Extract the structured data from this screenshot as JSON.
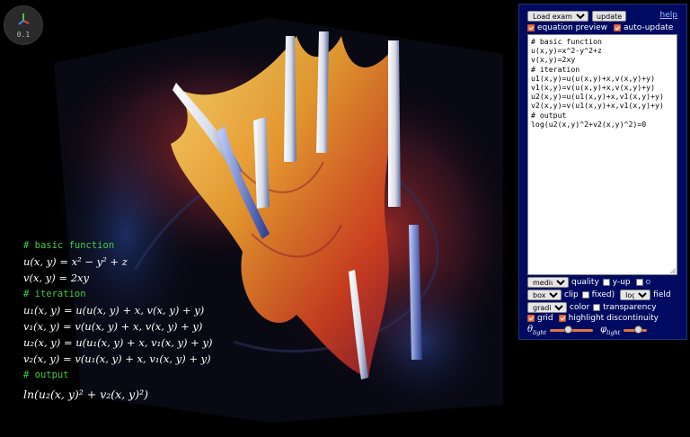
{
  "viewport": {
    "fps_value": "0.1"
  },
  "equations": {
    "basic_comment": "# basic function",
    "u": "u(x, y) = x² − y² + z",
    "v": "v(x, y) = 2xy",
    "iteration_comment": "# iteration",
    "u1": "u₁(x, y) = u(u(x, y) + x, v(x, y) + y)",
    "v1": "v₁(x, y) = v(u(x, y) + x, v(x, y) + y)",
    "u2": "u₂(x, y) = u(u₁(x, y) + x, v₁(x, y) + y)",
    "v2": "v₂(x, y) = v(u₁(x, y) + x, v₁(x, y) + y)",
    "output_comment": "# output",
    "output": "ln(u₂(x, y)² + v₂(x, y)²)"
  },
  "panel": {
    "load_example_selected": "Load example...",
    "update_label": "update",
    "help_label": "help",
    "equation_preview_label": "equation preview",
    "auto_update_label": "auto-update",
    "code_lines": [
      "# basic function",
      "u(x,y)=x^2-y^2+z",
      "v(x,y)=2xy",
      "# iteration",
      "u1(x,y)=u(u(x,y)+x,v(x,y)+y)",
      "v1(x,y)=v(u(x,y)+x,v(x,y)+y)",
      "u2(x,y)=u(u1(x,y)+x,v1(x,y)+y)",
      "v2(x,y)=v(u1(x,y)+x,v1(x,y)+y)",
      "# output",
      "log(u2(x,y)^2+v2(x,y)^2)=0"
    ],
    "quality_selected": "medium",
    "quality_label": "quality",
    "y_up_label": "y-up",
    "o_label": "o",
    "clip_selected": "box",
    "clip_label": "clip",
    "fixed_label": "fixed)",
    "field_selected": "log",
    "field_label": "field",
    "color_selected": "gradient",
    "color_label": "color",
    "transparency_label": "transparency",
    "grid_label": "grid",
    "highlight_label": "highlight discontinuity",
    "theta_label": "θ",
    "theta_sub": "light",
    "phi_label": "φ",
    "phi_sub": "light",
    "theta_value": 0.42,
    "phi_value": 0.62
  },
  "colors": {
    "panel_bg": "#000a60",
    "checkbox_on": "#e8734a",
    "comment_green": "#44cc44"
  }
}
